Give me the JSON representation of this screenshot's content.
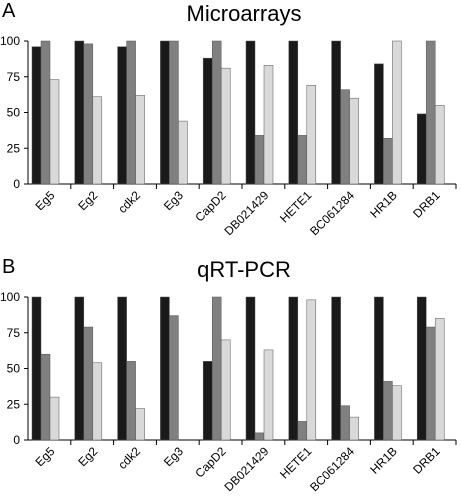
{
  "chart_data": [
    {
      "panel": "A",
      "title": "Microarrays",
      "type": "bar",
      "categories": [
        "Eg5",
        "Eg2",
        "cdk2",
        "Eg3",
        "CapD2",
        "DB021429",
        "HETE1",
        "BC061284",
        "HR1B",
        "DRB1"
      ],
      "series": [
        {
          "values": [
            96,
            100,
            96,
            100,
            88,
            100,
            100,
            100,
            84,
            49
          ]
        },
        {
          "values": [
            100,
            98,
            100,
            100,
            100,
            34,
            34,
            66,
            32,
            100
          ]
        },
        {
          "values": [
            73,
            61,
            62,
            44,
            81,
            83,
            69,
            60,
            100,
            55
          ]
        }
      ],
      "yticks": [
        "100",
        "75",
        "50",
        "25",
        "0"
      ],
      "ylim": [
        0,
        100
      ],
      "grid": false
    },
    {
      "panel": "B",
      "title": "qRT-PCR",
      "type": "bar",
      "categories": [
        "Eg5",
        "Eg2",
        "cdk2",
        "Eg3",
        "CapD2",
        "DB021429",
        "HETE1",
        "BC061284",
        "HR1B",
        "DRB1"
      ],
      "series": [
        {
          "values": [
            100,
            100,
            100,
            100,
            55,
            100,
            100,
            100,
            100,
            100
          ]
        },
        {
          "values": [
            60,
            79,
            55,
            87,
            100,
            5,
            13,
            24,
            41,
            79
          ]
        },
        {
          "values": [
            30,
            54,
            22,
            0,
            70,
            63,
            98,
            16,
            38,
            85
          ]
        }
      ],
      "yticks": [
        "100",
        "75",
        "50",
        "25",
        "0"
      ],
      "ylim": [
        0,
        100
      ],
      "grid": false
    }
  ],
  "colors": {
    "series": [
      "#1a1a1a",
      "#808080",
      "#d9d9d9"
    ],
    "axis": "#000000"
  }
}
